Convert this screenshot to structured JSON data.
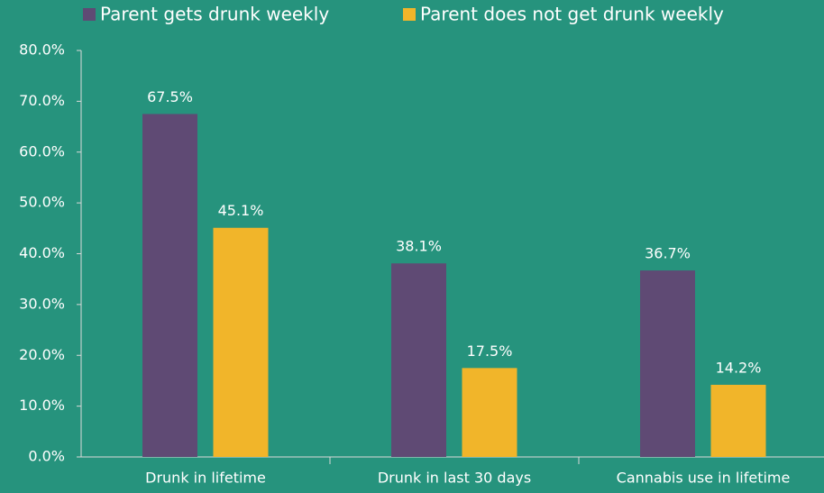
{
  "chart_data": {
    "type": "bar",
    "categories": [
      "Drunk in lifetime",
      "Drunk in last 30 days",
      "Cannabis use in lifetime"
    ],
    "series": [
      {
        "name": "Parent gets drunk weekly",
        "color": "#5f4a74",
        "values": [
          67.5,
          38.1,
          36.7
        ],
        "value_labels": [
          "67.5%",
          "38.1%",
          "36.7%"
        ]
      },
      {
        "name": "Parent does not get drunk weekly",
        "color": "#f1b52a",
        "values": [
          45.1,
          17.5,
          14.2
        ],
        "value_labels": [
          "45.1%",
          "17.5%",
          "14.2%"
        ]
      }
    ],
    "ylim": [
      0,
      80
    ],
    "yticks": [
      {
        "value": 0,
        "label": "0.0%"
      },
      {
        "value": 10,
        "label": "10.0%"
      },
      {
        "value": 20,
        "label": "20.0%"
      },
      {
        "value": 30,
        "label": "30.0%"
      },
      {
        "value": 40,
        "label": "40.0%"
      },
      {
        "value": 50,
        "label": "50.0%"
      },
      {
        "value": 60,
        "label": "60.0%"
      },
      {
        "value": 70,
        "label": "70.0%"
      },
      {
        "value": 80,
        "label": "80.0%"
      }
    ],
    "legend": "top",
    "grid": false
  }
}
